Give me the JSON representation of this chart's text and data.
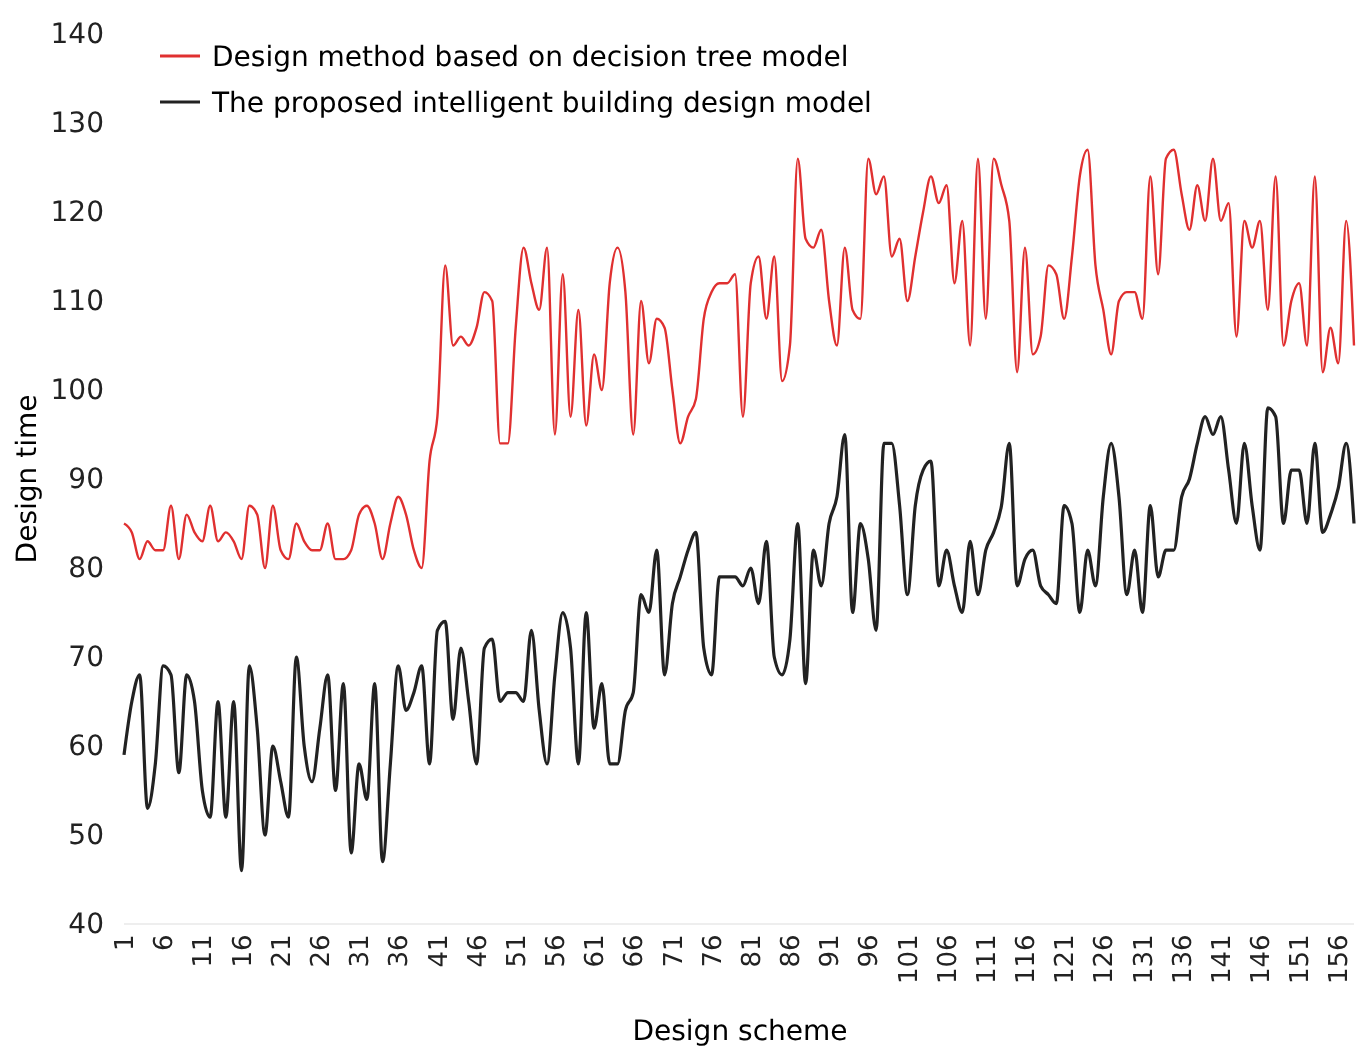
{
  "chart_data": {
    "type": "line",
    "xlabel": "Design scheme",
    "ylabel": "Design time",
    "categories": [
      "1",
      null,
      null,
      null,
      null,
      "6",
      null,
      null,
      null,
      null,
      "11",
      null,
      null,
      null,
      null,
      "16",
      null,
      null,
      null,
      null,
      "21",
      null,
      null,
      null,
      null,
      "26",
      null,
      null,
      null,
      null,
      "31",
      null,
      null,
      null,
      null,
      "36",
      null,
      null,
      null,
      null,
      "41",
      null,
      null,
      null,
      null,
      "46",
      null,
      null,
      null,
      null,
      "51",
      null,
      null,
      null,
      null,
      "56",
      null,
      null,
      null,
      null,
      "61",
      null,
      null,
      null,
      null,
      "66",
      null,
      null,
      null,
      null,
      "71",
      null,
      null,
      null,
      null,
      "76",
      null,
      null,
      null,
      null,
      "81",
      null,
      null,
      null,
      null,
      "86",
      null,
      null,
      null,
      null,
      "91",
      null,
      null,
      null,
      null,
      "96",
      null,
      null,
      null,
      null,
      "101",
      null,
      null,
      null,
      null,
      "106",
      null,
      null,
      null,
      null,
      "111",
      null,
      null,
      null,
      null,
      "116",
      null,
      null,
      null,
      null,
      "121",
      null,
      null,
      null,
      null,
      "126",
      null,
      null,
      null,
      null,
      "131",
      null,
      null,
      null,
      null,
      "136",
      null,
      null,
      null,
      null,
      "141",
      null,
      null,
      null,
      null,
      "146",
      null,
      null,
      null,
      null,
      "151",
      null,
      null,
      null,
      null,
      "156",
      null,
      null
    ],
    "ylim": [
      40,
      140
    ],
    "yticks": [
      40,
      50,
      60,
      70,
      80,
      90,
      100,
      110,
      120,
      130,
      140
    ],
    "grid": false,
    "legend": "top left",
    "marker": "none",
    "line_style": "solid",
    "series": [
      {
        "name": "Design method based on decision tree model",
        "color": "#e03030",
        "values": [
          85,
          84,
          81,
          83,
          82,
          82,
          87,
          81,
          86,
          84,
          83,
          87,
          83,
          84,
          83,
          81,
          87,
          86,
          80,
          87,
          82,
          81,
          85,
          83,
          82,
          82,
          85,
          81,
          81,
          82,
          86,
          87,
          85,
          81,
          85,
          88,
          86,
          82,
          80,
          92,
          97,
          114,
          105,
          106,
          105,
          107,
          111,
          110,
          94,
          94,
          107,
          116,
          112,
          109,
          116,
          95,
          113,
          97,
          109,
          96,
          104,
          100,
          112,
          116,
          111,
          95,
          110,
          103,
          108,
          107,
          100,
          94,
          97,
          99,
          108,
          111,
          112,
          112,
          113,
          97,
          112,
          115,
          108,
          115,
          101,
          105,
          126,
          117,
          116,
          118,
          110,
          105,
          116,
          109,
          108,
          126,
          122,
          124,
          115,
          117,
          110,
          115,
          120,
          124,
          121,
          123,
          112,
          119,
          105,
          126,
          108,
          126,
          123,
          119,
          102,
          116,
          104,
          106,
          114,
          113,
          108,
          115,
          124,
          127,
          114,
          109,
          104,
          110,
          111,
          111,
          108,
          124,
          113,
          126,
          127,
          122,
          118,
          123,
          119,
          126,
          119,
          121,
          106,
          119,
          116,
          119,
          109,
          124,
          105,
          110,
          112,
          105,
          124,
          102,
          107,
          103,
          119,
          105
        ]
      },
      {
        "name": "The proposed intelligent building design model",
        "color": "#222222",
        "values": [
          59,
          65,
          68,
          53,
          58,
          69,
          68,
          57,
          68,
          65,
          55,
          52,
          65,
          52,
          65,
          46,
          69,
          62,
          50,
          60,
          56,
          52,
          70,
          60,
          56,
          62,
          68,
          55,
          67,
          48,
          58,
          54,
          67,
          47,
          58,
          69,
          64,
          66,
          69,
          58,
          73,
          74,
          63,
          71,
          65,
          58,
          71,
          72,
          65,
          66,
          66,
          65,
          73,
          64,
          58,
          68,
          75,
          71,
          58,
          75,
          62,
          67,
          58,
          58,
          64,
          66,
          77,
          75,
          82,
          68,
          76,
          79,
          82,
          84,
          71,
          68,
          79,
          79,
          79,
          78,
          80,
          76,
          83,
          70,
          68,
          72,
          85,
          67,
          82,
          78,
          85,
          88,
          95,
          75,
          85,
          81,
          73,
          94,
          94,
          87,
          77,
          87,
          91,
          92,
          78,
          82,
          78,
          75,
          83,
          77,
          82,
          84,
          87,
          94,
          78,
          81,
          82,
          78,
          77,
          76,
          87,
          85,
          75,
          82,
          78,
          88,
          94,
          88,
          77,
          82,
          75,
          87,
          79,
          82,
          82,
          88,
          90,
          94,
          97,
          95,
          97,
          91,
          85,
          94,
          87,
          82,
          98,
          97,
          85,
          91,
          91,
          85,
          94,
          84,
          86,
          89,
          94,
          85
        ]
      }
    ]
  }
}
